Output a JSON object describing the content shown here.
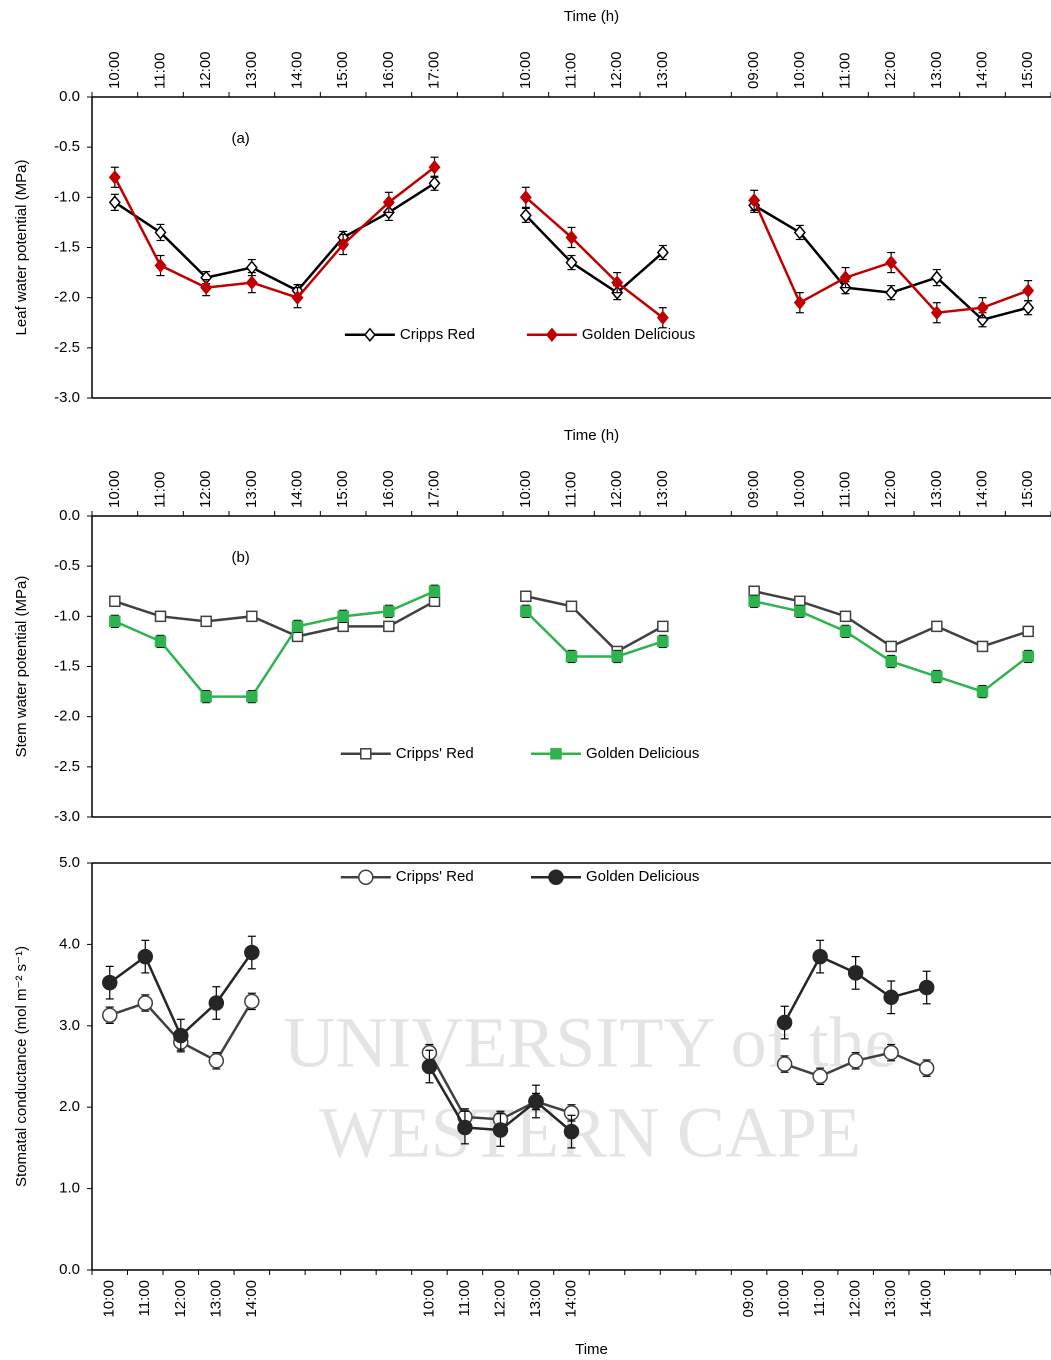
{
  "watermark": [
    "UNIVERSITY of the",
    "WESTERN CAPE"
  ],
  "chart_data": [
    {
      "type": "line",
      "annotation": "(a)",
      "xlabel": "Time (h)",
      "xaxis_position": "top",
      "ylabel": "Leaf water potential (MPa)",
      "categories": [
        "10:00",
        "11:00",
        "12:00",
        "13:00",
        "14:00",
        "15:00",
        "16:00",
        "17:00",
        null,
        "10:00",
        "11:00",
        "12:00",
        "13:00",
        null,
        "09:00",
        "10:00",
        "11:00",
        "12:00",
        "13:00",
        "14:00",
        "15:00"
      ],
      "series": [
        {
          "name": "Cripps Red",
          "color": "#000000",
          "marker": "diamond",
          "filled": false,
          "values": [
            -1.05,
            -1.35,
            -1.8,
            -1.7,
            -1.93,
            -1.4,
            -1.15,
            -0.86,
            null,
            -1.18,
            -1.65,
            -1.95,
            -1.55,
            null,
            -1.08,
            -1.35,
            -1.9,
            -1.95,
            -1.8,
            -2.22,
            -2.1
          ],
          "errors": [
            0.08,
            0.08,
            0.06,
            0.08,
            0.06,
            0.06,
            0.08,
            0.07,
            null,
            0.07,
            0.07,
            0.07,
            0.07,
            null,
            0.07,
            0.07,
            0.06,
            0.07,
            0.08,
            0.07,
            0.07
          ]
        },
        {
          "name": "Golden Delicious",
          "color": "#c00000",
          "marker": "diamond",
          "filled": true,
          "values": [
            -0.8,
            -1.68,
            -1.9,
            -1.85,
            -2.0,
            -1.47,
            -1.05,
            -0.7,
            null,
            -1.0,
            -1.4,
            -1.85,
            -2.2,
            null,
            -1.03,
            -2.05,
            -1.8,
            -1.65,
            -2.15,
            -2.1,
            -1.93
          ],
          "errors": [
            0.1,
            0.1,
            0.08,
            0.1,
            0.1,
            0.1,
            0.1,
            0.1,
            null,
            0.1,
            0.1,
            0.1,
            0.1,
            null,
            0.1,
            0.1,
            0.1,
            0.1,
            0.1,
            0.1,
            0.1
          ]
        }
      ],
      "ylim": [
        -3,
        0
      ],
      "yticks": [
        {
          "value": -3,
          "label": "-3.0"
        },
        -2.5,
        {
          "value": -2,
          "label": "-2.0"
        },
        -1.5,
        {
          "value": -1,
          "label": "-1.0"
        },
        -0.5,
        {
          "value": 0,
          "label": "0.0"
        }
      ],
      "legend": "lower center"
    },
    {
      "type": "line",
      "annotation": "(b)",
      "xlabel": "Time (h)",
      "xaxis_position": "top",
      "ylabel": "Stem water potential (MPa)",
      "categories": [
        "10:00",
        "11:00",
        "12:00",
        "13:00",
        "14:00",
        "15:00",
        "16:00",
        "17:00",
        null,
        "10:00",
        "11:00",
        "12:00",
        "13:00",
        null,
        "09:00",
        "10:00",
        "11:00",
        "12:00",
        "13:00",
        "14:00",
        "15:00"
      ],
      "series": [
        {
          "name": "Cripps' Red",
          "color": "#404040",
          "marker": "square",
          "filled": false,
          "values": [
            -0.85,
            -1.0,
            -1.05,
            -1.0,
            -1.2,
            -1.1,
            -1.1,
            -0.85,
            null,
            -0.8,
            -0.9,
            -1.35,
            -1.1,
            null,
            -0.75,
            -0.85,
            -1.0,
            -1.3,
            -1.1,
            -1.3,
            -1.15
          ],
          "errors": [
            0.04,
            0.04,
            0.04,
            0.04,
            0.04,
            0.04,
            0.04,
            0.04,
            null,
            0.04,
            0.04,
            0.04,
            0.04,
            null,
            0.04,
            0.04,
            0.04,
            0.04,
            0.04,
            0.04,
            0.04
          ]
        },
        {
          "name": "Golden Delicious",
          "color": "#2eb34f",
          "marker": "square",
          "filled": true,
          "values": [
            -1.05,
            -1.25,
            -1.8,
            -1.8,
            -1.1,
            -1.0,
            -0.95,
            -0.75,
            null,
            -0.95,
            -1.4,
            -1.4,
            -1.25,
            null,
            -0.85,
            -0.95,
            -1.15,
            -1.45,
            -1.6,
            -1.75,
            -1.4
          ],
          "errors": [
            0.06,
            0.06,
            0.06,
            0.06,
            0.06,
            0.06,
            0.06,
            0.06,
            null,
            0.06,
            0.06,
            0.06,
            0.06,
            null,
            0.06,
            0.06,
            0.06,
            0.06,
            0.06,
            0.06,
            0.06
          ]
        }
      ],
      "ylim": [
        -3,
        0
      ],
      "yticks": [
        {
          "value": -3,
          "label": "-3.0"
        },
        -2.5,
        {
          "value": -2,
          "label": "-2.0"
        },
        -1.5,
        {
          "value": -1,
          "label": "-1.0"
        },
        -0.5,
        {
          "value": 0,
          "label": "0.0"
        }
      ],
      "legend": "lower center"
    },
    {
      "type": "line",
      "xlabel": "Time",
      "xaxis_position": "bottom",
      "ylabel": "Stomatal conductance (mol m⁻²  s⁻¹)",
      "categories": [
        "10:00",
        "11:00",
        "12:00",
        "13:00",
        "14:00",
        null,
        null,
        null,
        null,
        "10:00",
        "11:00",
        "12:00",
        "13:00",
        "14:00",
        null,
        null,
        null,
        null,
        "09:00",
        "10:00",
        "11:00",
        "12:00",
        "13:00",
        "14:00",
        null,
        null,
        null
      ],
      "series": [
        {
          "name": "Cripps' Red",
          "color": "#404040",
          "marker": "circle",
          "filled": false,
          "values": [
            3.13,
            3.28,
            2.8,
            2.57,
            3.3,
            null,
            null,
            null,
            null,
            2.67,
            1.88,
            1.85,
            2.07,
            1.93,
            null,
            null,
            null,
            null,
            null,
            2.53,
            2.38,
            2.57,
            2.67,
            2.48,
            null,
            null,
            null
          ],
          "errors": [
            0.1,
            0.1,
            0.1,
            0.1,
            0.1,
            null,
            null,
            null,
            null,
            0.1,
            0.1,
            0.1,
            0.1,
            0.1,
            null,
            null,
            null,
            null,
            null,
            0.1,
            0.1,
            0.1,
            0.1,
            0.1,
            null,
            null,
            null
          ]
        },
        {
          "name": "Golden Delicious",
          "color": "#262626",
          "marker": "circle",
          "filled": true,
          "values": [
            3.53,
            3.85,
            2.88,
            3.28,
            3.9,
            null,
            null,
            null,
            null,
            2.5,
            1.75,
            1.72,
            2.07,
            1.7,
            null,
            null,
            null,
            null,
            null,
            3.04,
            3.85,
            3.65,
            3.35,
            3.47,
            null,
            null,
            null
          ],
          "errors": [
            0.2,
            0.2,
            0.2,
            0.2,
            0.2,
            null,
            null,
            null,
            null,
            0.2,
            0.2,
            0.2,
            0.2,
            0.2,
            null,
            null,
            null,
            null,
            null,
            0.2,
            0.2,
            0.2,
            0.2,
            0.2,
            null,
            null,
            null
          ]
        }
      ],
      "ylim": [
        0,
        5
      ],
      "yticks": [
        {
          "value": 0,
          "label": "0.0"
        },
        {
          "value": 1,
          "label": "1.0"
        },
        {
          "value": 2,
          "label": "2.0"
        },
        {
          "value": 3,
          "label": "3.0"
        },
        {
          "value": 4,
          "label": "4.0"
        },
        {
          "value": 5,
          "label": "5.0"
        }
      ],
      "legend": "upper center"
    }
  ]
}
